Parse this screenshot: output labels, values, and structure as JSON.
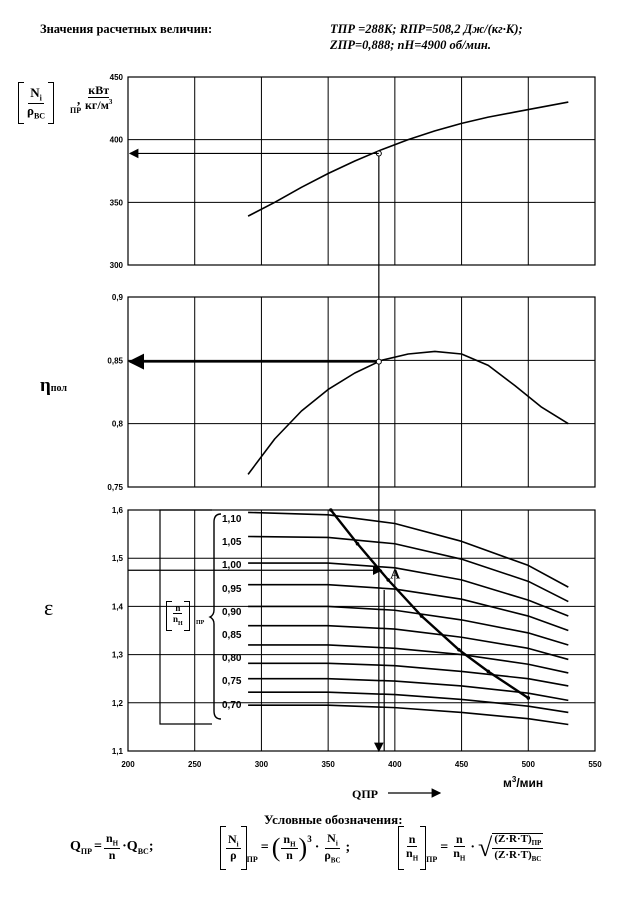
{
  "header": {
    "left": "Значения расчетных величин:",
    "line1": "TПР =288K;  RПР=508,2 Дж/(кг·К);",
    "line2": "ZПР=0,888;   nH=4900 об/мин."
  },
  "chart_data": [
    {
      "type": "line",
      "panel": "power",
      "ylabel_unit": "кВт/кг/м³",
      "ylim": [
        300,
        450
      ],
      "yticks": [
        "300",
        "350",
        "400",
        "450"
      ],
      "xlim": [
        200,
        550
      ],
      "series": [
        {
          "x": [
            290,
            310,
            330,
            350,
            370,
            390,
            410,
            430,
            450,
            470,
            490,
            510,
            530
          ],
          "y": [
            339,
            350,
            362,
            373,
            383,
            392,
            400,
            407,
            413,
            418,
            422,
            426,
            430
          ]
        }
      ],
      "annotation": {
        "x": 388,
        "y": 389
      }
    },
    {
      "type": "line",
      "panel": "efficiency",
      "ylabel": "ηпол",
      "ylim": [
        0.75,
        0.9
      ],
      "yticks": [
        "0,75",
        "0,8",
        "0,85",
        "0,9"
      ],
      "xlim": [
        200,
        550
      ],
      "series": [
        {
          "x": [
            290,
            310,
            330,
            350,
            370,
            390,
            410,
            430,
            450,
            470,
            490,
            510,
            530
          ],
          "y": [
            0.76,
            0.788,
            0.81,
            0.827,
            0.84,
            0.85,
            0.855,
            0.857,
            0.855,
            0.846,
            0.83,
            0.813,
            0.8
          ]
        }
      ],
      "annotation": {
        "x": 388,
        "y": 0.849
      }
    },
    {
      "type": "line",
      "panel": "pressure-ratio",
      "ylabel": "ε",
      "ylim": [
        1.1,
        1.6
      ],
      "yticks": [
        "1,1",
        "1,2",
        "1,3",
        "1,4",
        "1,5",
        "1,6"
      ],
      "xlim": [
        200,
        550
      ],
      "xticks": [
        "200",
        "250",
        "300",
        "350",
        "400",
        "450",
        "500",
        "550"
      ],
      "xlabel": "QПР",
      "xunit": "м³/мин",
      "legend_title": "n/nH ПР",
      "series": [
        {
          "name": "1,10",
          "x": [
            290,
            350,
            400,
            450,
            500,
            530
          ],
          "y": [
            1.595,
            1.59,
            1.572,
            1.535,
            1.485,
            1.44
          ]
        },
        {
          "name": "1,05",
          "x": [
            290,
            350,
            400,
            450,
            500,
            530
          ],
          "y": [
            1.545,
            1.543,
            1.53,
            1.498,
            1.452,
            1.41
          ]
        },
        {
          "name": "1,00",
          "x": [
            290,
            350,
            400,
            450,
            500,
            530
          ],
          "y": [
            1.49,
            1.49,
            1.48,
            1.455,
            1.413,
            1.38
          ]
        },
        {
          "name": "0,95",
          "x": [
            290,
            350,
            400,
            450,
            500,
            530
          ],
          "y": [
            1.445,
            1.445,
            1.436,
            1.415,
            1.38,
            1.35
          ]
        },
        {
          "name": "0,90",
          "x": [
            290,
            350,
            400,
            450,
            500,
            530
          ],
          "y": [
            1.4,
            1.4,
            1.392,
            1.372,
            1.345,
            1.32
          ]
        },
        {
          "name": "0,85",
          "x": [
            290,
            350,
            400,
            450,
            500,
            530
          ],
          "y": [
            1.36,
            1.36,
            1.353,
            1.336,
            1.313,
            1.29
          ]
        },
        {
          "name": "0,80",
          "x": [
            290,
            350,
            400,
            450,
            500,
            530
          ],
          "y": [
            1.32,
            1.32,
            1.313,
            1.3,
            1.28,
            1.262
          ]
        },
        {
          "name": "0,75",
          "x": [
            290,
            350,
            400,
            450,
            500,
            530
          ],
          "y": [
            1.282,
            1.282,
            1.277,
            1.265,
            1.25,
            1.235
          ]
        },
        {
          "name": "0,70",
          "x": [
            290,
            350,
            400,
            450,
            500,
            530
          ],
          "y": [
            1.25,
            1.25,
            1.245,
            1.235,
            1.22,
            1.205
          ]
        },
        {
          "x": [
            290,
            350,
            400,
            450,
            500,
            530
          ],
          "y": [
            1.222,
            1.222,
            1.217,
            1.207,
            1.193,
            1.18
          ]
        },
        {
          "x": [
            290,
            350,
            400,
            450,
            500,
            530
          ],
          "y": [
            1.195,
            1.195,
            1.19,
            1.18,
            1.167,
            1.155
          ]
        }
      ],
      "surge_line": {
        "x": [
          352,
          372,
          395,
          420,
          448,
          470,
          500
        ],
        "y": [
          1.6,
          1.53,
          1.455,
          1.38,
          1.31,
          1.265,
          1.21
        ]
      },
      "point": {
        "label": "A",
        "x": 392,
        "y": 1.475
      }
    }
  ],
  "legend_values": [
    "1,10",
    "1,05",
    "1,00",
    "0,95",
    "0,90",
    "0,85",
    "0,80",
    "0,75",
    "0,70"
  ],
  "footer": {
    "title": "Условные обозначения:",
    "f1": "QПР = nH/n · QBC",
    "f2": "[N/ρ]ПР = (nH/n)³ · Ni/ρBC",
    "f3": "[n/nH]ПР = n/nH · √((Z·R·T)ПР/(Z·R·T)BC)"
  }
}
